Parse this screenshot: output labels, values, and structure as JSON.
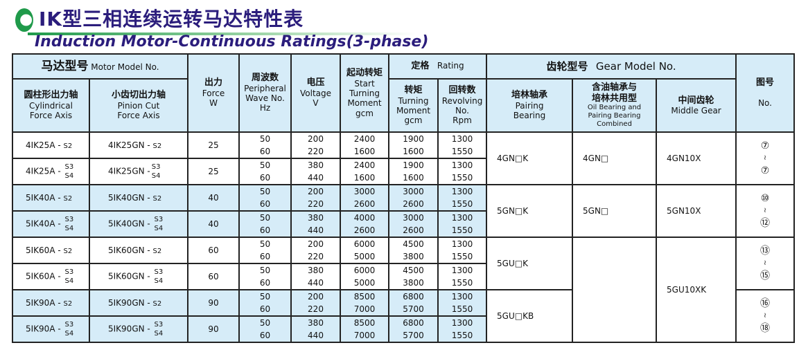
{
  "title": "IK型三相连续运转马达特性表",
  "subtitle": "Induction Motor-Continuous Ratings(3-phase)",
  "colors": {
    "title": "#2b1d7c",
    "header_bg": "#d6ecf8",
    "logo": "#1f9a4a"
  },
  "header": {
    "motor_model_cn": "马达型号",
    "motor_model_en": "Motor Model No.",
    "cyl_cn": "圆柱形出力轴",
    "cyl_en1": "Cylindrical",
    "cyl_en2": "Force Axis",
    "pin_cn": "小齿切出力轴",
    "pin_en1": "Pinion Cut",
    "pin_en2": "Force Axis",
    "force_cn": "出力",
    "force_en": "Force",
    "force_unit": "W",
    "wave_cn": "周波数",
    "wave_en1": "Peripheral",
    "wave_en2": "Wave No.",
    "wave_unit": "Hz",
    "volt_cn": "电压",
    "volt_en": "Voltage",
    "volt_unit": "V",
    "start_cn": "起动转矩",
    "start_en1": "Start",
    "start_en2": "Turning",
    "start_en3": "Moment",
    "start_unit": "gcm",
    "rating_cn": "定格",
    "rating_en": "Rating",
    "torque_cn": "转矩",
    "torque_en1": "Turning",
    "torque_en2": "Moment",
    "torque_unit": "gcm",
    "rev_cn": "回转数",
    "rev_en1": "Revolving",
    "rev_en2": "No.",
    "rev_unit": "Rpm",
    "gear_cn": "齿轮型号",
    "gear_en": "Gear Model No.",
    "pair_cn": "培林轴承",
    "pair_en1": "Pairing",
    "pair_en2": "Bearing",
    "oil_cn1": "含油轴承与",
    "oil_cn2": "培林共用型",
    "oil_en1": "Oil Bearing and",
    "oil_en2": "Pairing Bearing",
    "oil_en3": "Combined",
    "mid_cn": "中间齿轮",
    "mid_en": "Middle Gear",
    "fig_cn": "图号",
    "fig_en": "No."
  },
  "rows": [
    {
      "cyl": "4IK25A - ",
      "pin": "4IK25GN - ",
      "suf": [
        "S2"
      ],
      "force": "25",
      "hz": [
        "50",
        "60"
      ],
      "v": [
        "200",
        "220"
      ],
      "start": [
        "2400",
        "1600"
      ],
      "torque": [
        "1900",
        "1600"
      ],
      "rpm": [
        "1300",
        "1550"
      ]
    },
    {
      "cyl": "4IK25A - ",
      "pin": "4IK25GN -",
      "suf": [
        "S3",
        "S4"
      ],
      "force": "25",
      "hz": [
        "50",
        "60"
      ],
      "v": [
        "380",
        "440"
      ],
      "start": [
        "2400",
        "1600"
      ],
      "torque": [
        "1900",
        "1600"
      ],
      "rpm": [
        "1300",
        "1550"
      ]
    },
    {
      "cyl": "5IK40A - ",
      "pin": "5IK40GN - ",
      "suf": [
        "S2"
      ],
      "force": "40",
      "hz": [
        "50",
        "60"
      ],
      "v": [
        "200",
        "220"
      ],
      "start": [
        "3000",
        "2600"
      ],
      "torque": [
        "3000",
        "2600"
      ],
      "rpm": [
        "1300",
        "1550"
      ]
    },
    {
      "cyl": "5IK40A - ",
      "pin": "5IK40GN  - ",
      "suf": [
        "S3",
        "S4"
      ],
      "force": "40",
      "hz": [
        "50",
        "60"
      ],
      "v": [
        "380",
        "440"
      ],
      "start": [
        "4000",
        "2600"
      ],
      "torque": [
        "3000",
        "2600"
      ],
      "rpm": [
        "1300",
        "1550"
      ]
    },
    {
      "cyl": "5IK60A - ",
      "pin": "5IK60GN - ",
      "suf": [
        "S2"
      ],
      "force": "60",
      "hz": [
        "50",
        "60"
      ],
      "v": [
        "200",
        "220"
      ],
      "start": [
        "6000",
        "5000"
      ],
      "torque": [
        "4500",
        "3800"
      ],
      "rpm": [
        "1300",
        "1550"
      ]
    },
    {
      "cyl": "5IK60A - ",
      "pin": "5IK60GN - ",
      "suf": [
        "S3",
        "S4"
      ],
      "force": "60",
      "hz": [
        "50",
        "60"
      ],
      "v": [
        "380",
        "440"
      ],
      "start": [
        "6000",
        "5000"
      ],
      "torque": [
        "4500",
        "3800"
      ],
      "rpm": [
        "1300",
        "1550"
      ]
    },
    {
      "cyl": "5IK90A - ",
      "pin": "5IK90GN - ",
      "suf": [
        "S2"
      ],
      "force": "90",
      "hz": [
        "50",
        "60"
      ],
      "v": [
        "200",
        "220"
      ],
      "start": [
        "8500",
        "7000"
      ],
      "torque": [
        "6800",
        "5700"
      ],
      "rpm": [
        "1300",
        "1550"
      ]
    },
    {
      "cyl": "5IK90A - ",
      "pin": "5IK90GN - ",
      "suf": [
        "S3",
        "S4"
      ],
      "force": "90",
      "hz": [
        "50",
        "60"
      ],
      "v": [
        "380",
        "440"
      ],
      "start": [
        "8500",
        "7000"
      ],
      "torque": [
        "6800",
        "5700"
      ],
      "rpm": [
        "1300",
        "1550"
      ]
    }
  ],
  "gears": {
    "pairing": [
      "4GN□K",
      "5GN□K",
      "5GU□K",
      "5GU□KB"
    ],
    "oil": [
      "4GN□",
      "5GN□"
    ],
    "middle": [
      "4GN10X",
      "5GN10X",
      "5GU10XK"
    ],
    "figures": [
      [
        "⑦",
        "≀",
        "⑦"
      ],
      [
        "⑩",
        "≀",
        "⑫"
      ],
      [
        "⑬",
        "≀",
        "⑮"
      ],
      [
        "⑯",
        "≀",
        "⑱"
      ]
    ]
  }
}
